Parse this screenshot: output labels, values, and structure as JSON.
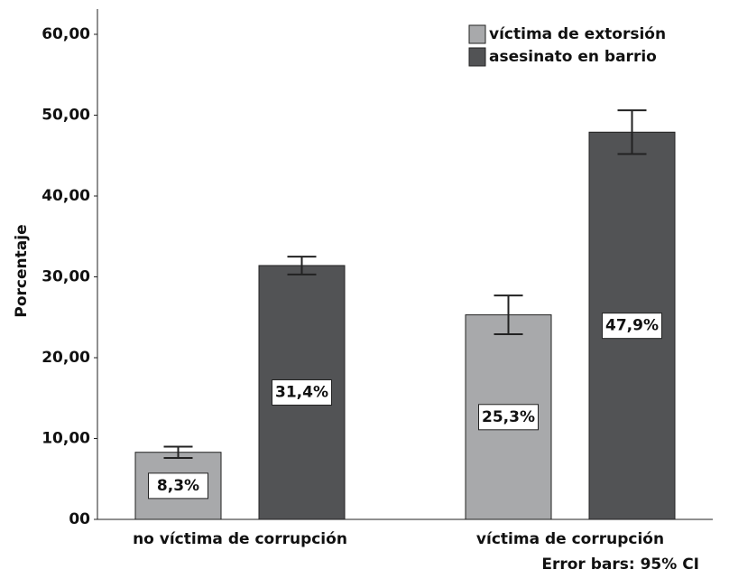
{
  "chart_data": {
    "type": "bar",
    "categories": [
      "no víctima de corrupción",
      "víctima de corrupción"
    ],
    "series": [
      {
        "name": "víctima de extorsión",
        "color": "#a8a9ab",
        "values": [
          8.3,
          25.3
        ],
        "value_labels": [
          "8,3%",
          "25,3%"
        ],
        "errors": [
          0.7,
          2.4
        ]
      },
      {
        "name": "asesinato en barrio",
        "color": "#525355",
        "values": [
          31.4,
          47.9
        ],
        "value_labels": [
          "31,4%",
          "47,9%"
        ],
        "errors": [
          1.1,
          2.7
        ]
      }
    ],
    "y_label": "Porcentaje",
    "note": "Error bars: 95% CI",
    "ylim": [
      0,
      60
    ],
    "yticks": [
      {
        "value": 0,
        "label": "00"
      },
      {
        "value": 10,
        "label": "10,00"
      },
      {
        "value": 20,
        "label": "20,00"
      },
      {
        "value": 30,
        "label": "30,00"
      },
      {
        "value": 40,
        "label": "40,00"
      },
      {
        "value": 50,
        "label": "50,00"
      },
      {
        "value": 60,
        "label": "60,00"
      }
    ],
    "legend": "top-right"
  }
}
